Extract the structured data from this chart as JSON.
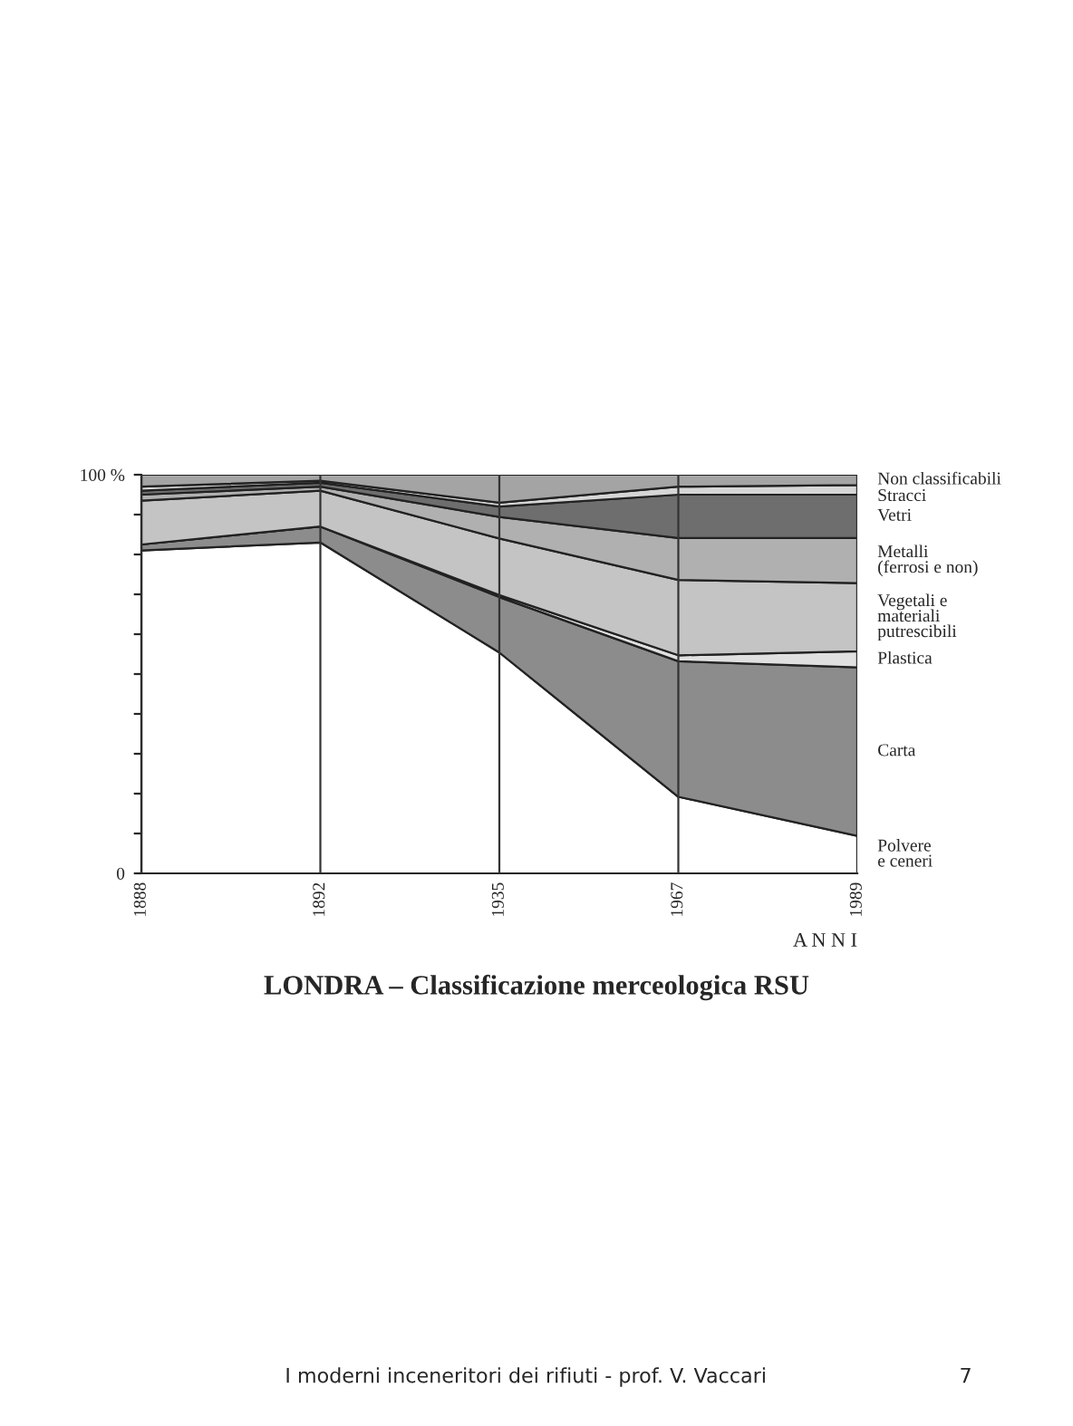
{
  "chart_data": {
    "type": "area",
    "stacked": true,
    "title": "LONDRA – Classificazione merceologica RSU",
    "xlabel": "A N N I",
    "categories": [
      "1888",
      "1892",
      "1935",
      "1967",
      "1989"
    ],
    "series": [
      {
        "name": "Polvere\ne ceneri",
        "color": "#ffffff",
        "values": [
          81,
          83,
          55.4,
          19.2,
          9.4
        ]
      },
      {
        "name": "Carta",
        "color": "#8c8c8c",
        "values": [
          1.5,
          4,
          13.9,
          34,
          42.3
        ]
      },
      {
        "name": "Plastica",
        "color": "#e0e0e0",
        "values": [
          0,
          0,
          0.5,
          1.5,
          4
        ]
      },
      {
        "name": "Vegetali e\nmateriali\nputrescibili",
        "color": "#c4c4c4",
        "values": [
          11,
          9,
          14.2,
          18.9,
          17.1
        ]
      },
      {
        "name": "Metalli\n(ferrosi e non)",
        "color": "#b0b0b0",
        "values": [
          1.5,
          1,
          5.4,
          10.5,
          11.3
        ]
      },
      {
        "name": "Vetri",
        "color": "#6e6e6e",
        "values": [
          1,
          1,
          2.6,
          10.9,
          10.9
        ]
      },
      {
        "name": "Stracci",
        "color": "#d6d6d6",
        "values": [
          1,
          0.5,
          1,
          2,
          2.4
        ]
      },
      {
        "name": "Non classificabili",
        "color": "#a4a4a4",
        "values": [
          3,
          1.5,
          7,
          3,
          2.6
        ]
      }
    ],
    "ylim": [
      0,
      100
    ],
    "yticks": [
      {
        "value": 0,
        "label": "0"
      },
      {
        "value": 10,
        "label": null
      },
      {
        "value": 20,
        "label": null
      },
      {
        "value": 30,
        "label": null
      },
      {
        "value": 40,
        "label": null
      },
      {
        "value": 50,
        "label": null
      },
      {
        "value": 60,
        "label": null
      },
      {
        "value": 70,
        "label": null
      },
      {
        "value": 80,
        "label": null
      },
      {
        "value": 90,
        "label": null
      },
      {
        "value": 100,
        "label": "100 %"
      }
    ],
    "grid": "x",
    "annotations": [
      "I moderni inceneritori dei rifiuti - prof. V. Vaccari",
      "7"
    ]
  }
}
